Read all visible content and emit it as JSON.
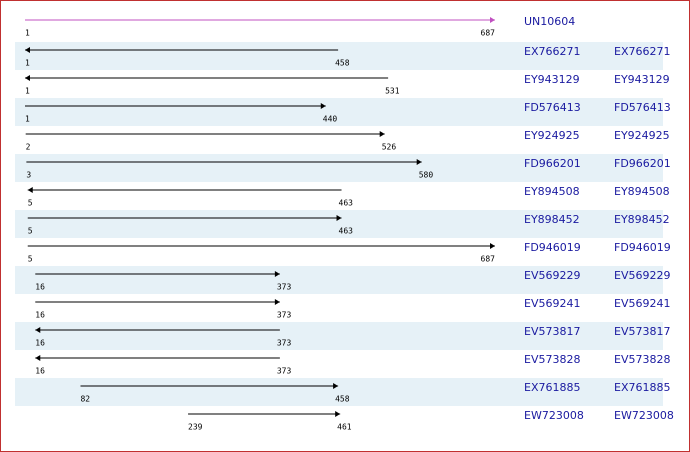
{
  "reference": {
    "name": "UN10604",
    "start": 1,
    "end": 687
  },
  "alignments": [
    {
      "name": "EX766271",
      "link": "EX766271",
      "start": 1,
      "end": 458,
      "strand": "-"
    },
    {
      "name": "EY943129",
      "link": "EY943129",
      "start": 1,
      "end": 531,
      "strand": "-"
    },
    {
      "name": "FD576413",
      "link": "FD576413",
      "start": 1,
      "end": 440,
      "strand": "+"
    },
    {
      "name": "EY924925",
      "link": "EY924925",
      "start": 2,
      "end": 526,
      "strand": "+"
    },
    {
      "name": "FD966201",
      "link": "FD966201",
      "start": 3,
      "end": 580,
      "strand": "+"
    },
    {
      "name": "EY894508",
      "link": "EY894508",
      "start": 5,
      "end": 463,
      "strand": "-"
    },
    {
      "name": "EY898452",
      "link": "EY898452",
      "start": 5,
      "end": 463,
      "strand": "+"
    },
    {
      "name": "FD946019",
      "link": "FD946019",
      "start": 5,
      "end": 687,
      "strand": "+"
    },
    {
      "name": "EV569229",
      "link": "EV569229",
      "start": 16,
      "end": 373,
      "strand": "+"
    },
    {
      "name": "EV569241",
      "link": "EV569241",
      "start": 16,
      "end": 373,
      "strand": "+"
    },
    {
      "name": "EV573817",
      "link": "EV573817",
      "start": 16,
      "end": 373,
      "strand": "-"
    },
    {
      "name": "EV573828",
      "link": "EV573828",
      "start": 16,
      "end": 373,
      "strand": "-"
    },
    {
      "name": "EX761885",
      "link": "EX761885",
      "start": 82,
      "end": 458,
      "strand": "+"
    },
    {
      "name": "EW723008",
      "link": "EW723008",
      "start": 239,
      "end": 461,
      "strand": "+"
    }
  ]
}
